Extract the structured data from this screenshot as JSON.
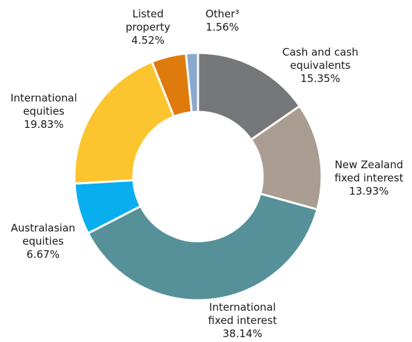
{
  "chart_data": {
    "type": "pie",
    "variant": "donut",
    "title": "",
    "slices": [
      {
        "name": "Cash and cash equivalents",
        "lines": [
          "Cash and cash",
          "equivalents"
        ],
        "value": 15.35,
        "value_label": "15.35%",
        "color": "#767779"
      },
      {
        "name": "New Zealand fixed interest",
        "lines": [
          "New Zealand",
          "fixed interest"
        ],
        "value": 13.93,
        "value_label": "13.93%",
        "color": "#a99d91"
      },
      {
        "name": "International fixed interest",
        "lines": [
          "International",
          "fixed interest"
        ],
        "value": 38.14,
        "value_label": "38.14%",
        "color": "#56919a"
      },
      {
        "name": "Australasian equities",
        "lines": [
          "Australasian",
          "equities"
        ],
        "value": 6.67,
        "value_label": "6.67%",
        "color": "#09aeef"
      },
      {
        "name": "International equities",
        "lines": [
          "International",
          "equities"
        ],
        "value": 19.83,
        "value_label": "19.83%",
        "color": "#fcc530"
      },
      {
        "name": "Listed property",
        "lines": [
          "Listed",
          "property"
        ],
        "value": 4.52,
        "value_label": "4.52%",
        "color": "#df7a0c"
      },
      {
        "name": "Other³",
        "lines": [
          "Other³"
        ],
        "value": 1.56,
        "value_label": "1.56%",
        "color": "#8ba9cc"
      }
    ]
  }
}
